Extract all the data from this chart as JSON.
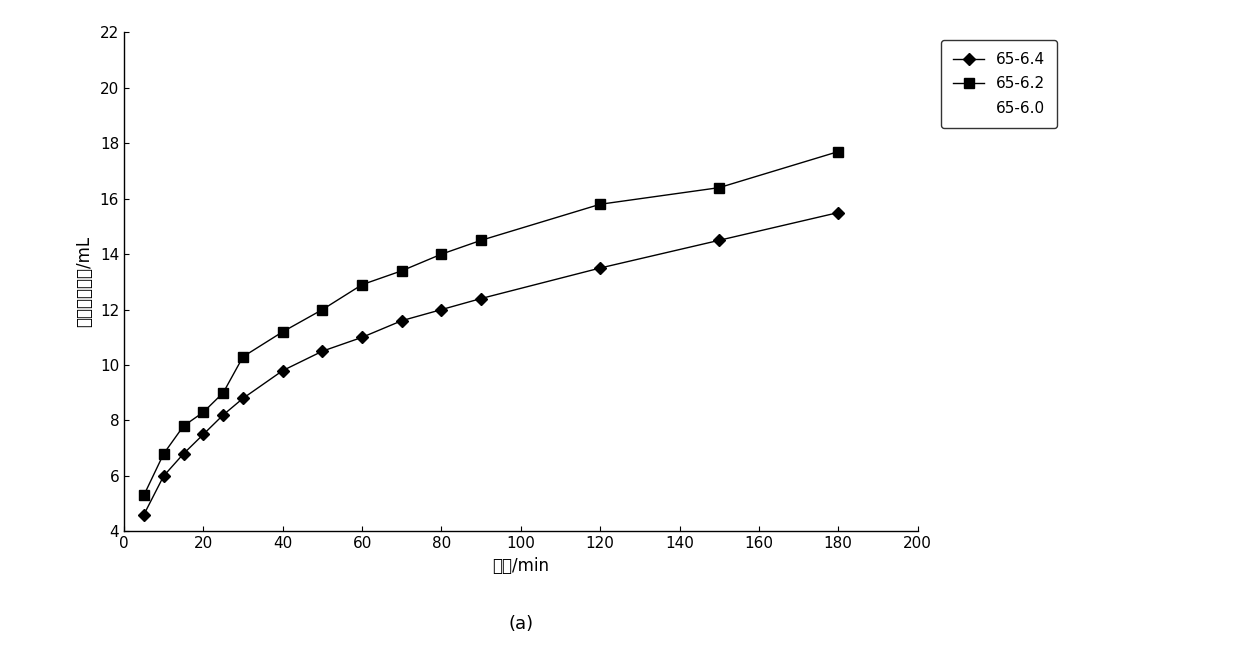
{
  "series_64": {
    "label": "65-6.4",
    "x": [
      5,
      10,
      15,
      20,
      25,
      30,
      40,
      50,
      60,
      70,
      80,
      90,
      120,
      150,
      180
    ],
    "y": [
      4.6,
      6.0,
      6.8,
      7.5,
      8.2,
      8.8,
      9.8,
      10.5,
      11.0,
      11.6,
      12.0,
      12.4,
      13.5,
      14.5,
      15.5
    ],
    "marker": "D",
    "color": "#000000",
    "markersize": 6,
    "markerfacecolor": "#000000"
  },
  "series_62": {
    "label": "65-6.2",
    "x": [
      5,
      10,
      15,
      20,
      25,
      30,
      40,
      50,
      60,
      70,
      80,
      90,
      120,
      150,
      180
    ],
    "y": [
      5.3,
      6.8,
      7.8,
      8.3,
      9.0,
      10.3,
      11.2,
      12.0,
      12.9,
      13.4,
      14.0,
      14.5,
      15.8,
      16.4,
      17.7
    ],
    "marker": "s",
    "color": "#000000",
    "markersize": 7,
    "markerfacecolor": "#000000"
  },
  "series_60_label": "65-6.0",
  "xlabel": "时间/min",
  "ylabel": "乳清析出体积/mL",
  "caption": "(a)",
  "xlim": [
    0,
    200
  ],
  "ylim": [
    4,
    22
  ],
  "xticks": [
    0,
    20,
    40,
    60,
    80,
    100,
    120,
    140,
    160,
    180,
    200
  ],
  "yticks": [
    4,
    6,
    8,
    10,
    12,
    14,
    16,
    18,
    20,
    22
  ],
  "figsize": [
    12.4,
    6.48
  ],
  "dpi": 100
}
